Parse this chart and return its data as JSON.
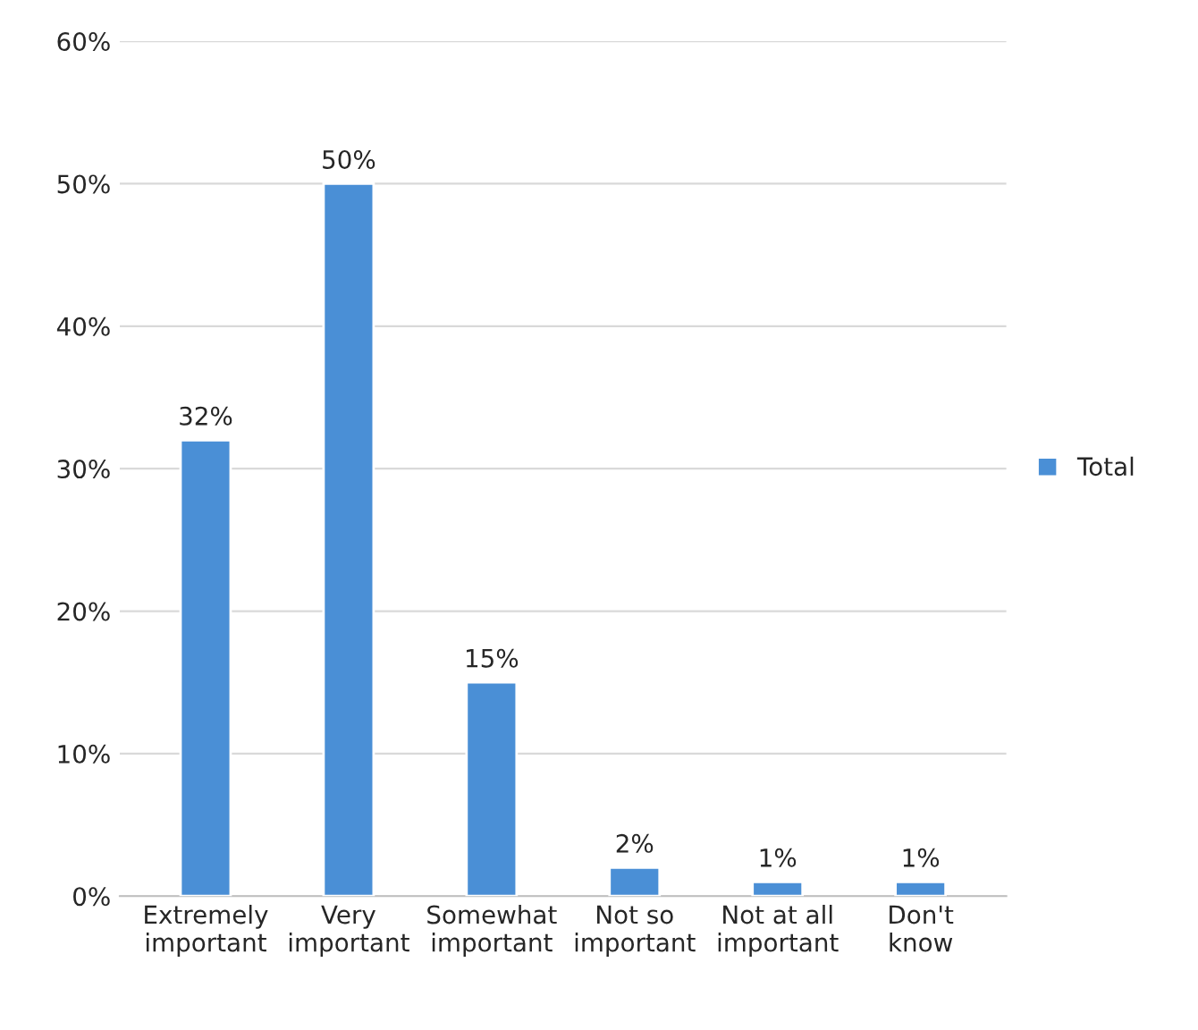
{
  "chart_data": {
    "type": "bar",
    "categories": [
      "Extremely\nimportant",
      "Very\nimportant",
      "Somewhat\nimportant",
      "Not so\nimportant",
      "Not at all\nimportant",
      "Don't\nknow"
    ],
    "series": [
      {
        "name": "Total",
        "color": "#4a8fd6",
        "values": [
          32,
          50,
          15,
          2,
          1,
          1
        ]
      }
    ],
    "ylim": [
      0,
      60
    ],
    "yticks": [
      {
        "value": 0,
        "label": "0%"
      },
      {
        "value": 10,
        "label": "10%"
      },
      {
        "value": 20,
        "label": "20%"
      },
      {
        "value": 30,
        "label": "30%"
      },
      {
        "value": 40,
        "label": "40%"
      },
      {
        "value": 50,
        "label": "50%"
      },
      {
        "value": 60,
        "label": "60%"
      }
    ],
    "value_labels": [
      "32%",
      "50%",
      "15%",
      "2%",
      "1%",
      "1%"
    ],
    "grid": "y",
    "legend": "right"
  }
}
